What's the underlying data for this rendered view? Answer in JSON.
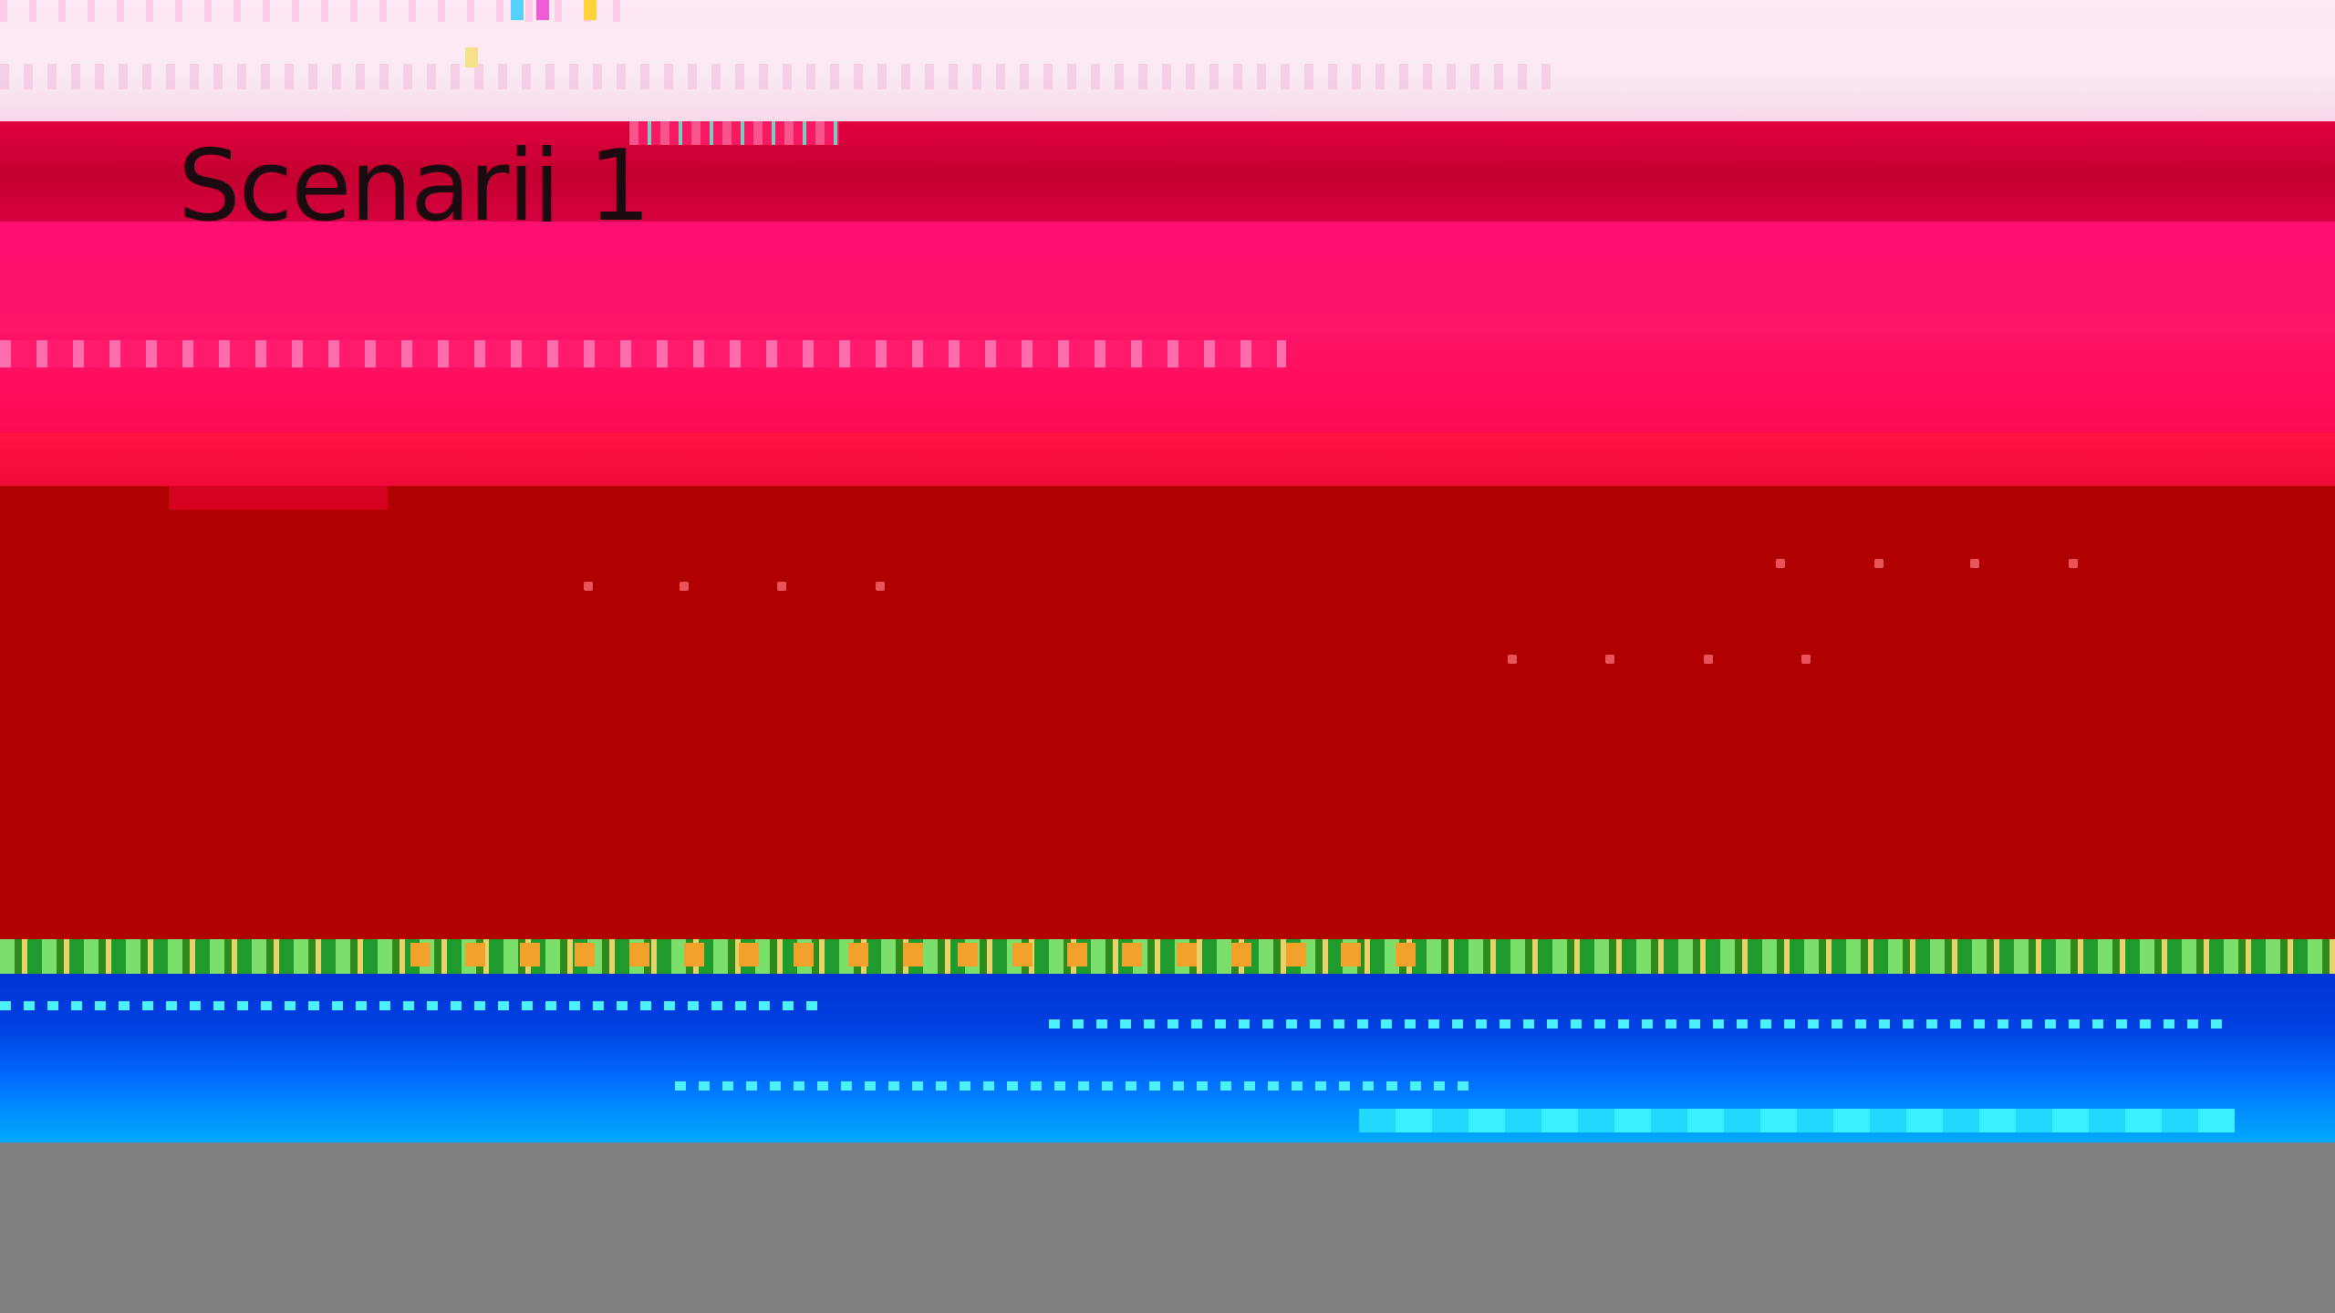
{
  "window": {
    "title": "Scenarij 1"
  },
  "colors": {
    "top_strip": "#fbeaf4",
    "banner": "#d6003e",
    "body_pink": "#ff0f70",
    "body_red": "#b00000",
    "band_green": "#2e8a1a",
    "band_blue": "#0040e0",
    "floor": "#808080"
  }
}
